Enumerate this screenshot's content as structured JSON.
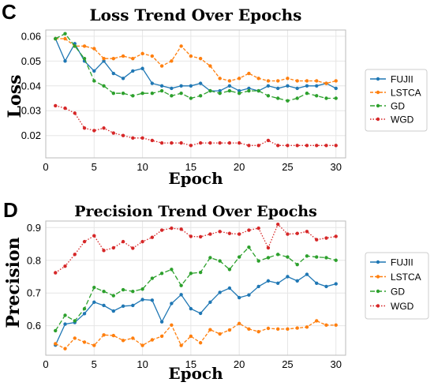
{
  "colors": {
    "FUJII": "#1f77b4",
    "LSTCA": "#ff7f0e",
    "GD": "#2ca02c",
    "WGD": "#d62728",
    "grid": "#e6e6e6",
    "axis": "#333333"
  },
  "chart_data": [
    {
      "panel_label": "C",
      "type": "line",
      "title": "Loss Trend Over Epochs",
      "xlabel": "Epoch",
      "ylabel": "Loss",
      "xlim": [
        0,
        31
      ],
      "ylim": [
        0.011,
        0.0625
      ],
      "xticks": [
        0,
        5,
        10,
        15,
        20,
        25,
        30
      ],
      "yticks": [
        0.02,
        0.03,
        0.04,
        0.05,
        0.06
      ],
      "ytick_labels": [
        "0.02",
        "0.03",
        "0.04",
        "0.05",
        "0.06"
      ],
      "grid": true,
      "legend_position": "right",
      "x": [
        1,
        2,
        3,
        4,
        5,
        6,
        7,
        8,
        9,
        10,
        11,
        12,
        13,
        14,
        15,
        16,
        17,
        18,
        19,
        20,
        21,
        22,
        23,
        24,
        25,
        26,
        27,
        28,
        29,
        30
      ],
      "series": [
        {
          "name": "FUJII",
          "values": [
            0.059,
            0.05,
            0.057,
            0.05,
            0.046,
            0.05,
            0.045,
            0.043,
            0.046,
            0.047,
            0.041,
            0.04,
            0.039,
            0.04,
            0.04,
            0.041,
            0.038,
            0.038,
            0.04,
            0.038,
            0.039,
            0.038,
            0.04,
            0.039,
            0.04,
            0.039,
            0.04,
            0.04,
            0.041,
            0.039
          ]
        },
        {
          "name": "LSTCA",
          "values": [
            0.059,
            0.059,
            0.056,
            0.056,
            0.055,
            0.051,
            0.051,
            0.052,
            0.051,
            0.053,
            0.052,
            0.048,
            0.05,
            0.056,
            0.052,
            0.051,
            0.048,
            0.043,
            0.042,
            0.043,
            0.045,
            0.043,
            0.042,
            0.042,
            0.043,
            0.042,
            0.042,
            0.042,
            0.041,
            0.042
          ]
        },
        {
          "name": "GD",
          "values": [
            0.059,
            0.061,
            0.056,
            0.051,
            0.042,
            0.04,
            0.037,
            0.037,
            0.036,
            0.037,
            0.037,
            0.038,
            0.036,
            0.037,
            0.035,
            0.036,
            0.038,
            0.037,
            0.038,
            0.037,
            0.038,
            0.038,
            0.036,
            0.035,
            0.034,
            0.035,
            0.037,
            0.036,
            0.035,
            0.035
          ]
        },
        {
          "name": "WGD",
          "values": [
            0.032,
            0.031,
            0.029,
            0.023,
            0.022,
            0.023,
            0.021,
            0.02,
            0.019,
            0.019,
            0.018,
            0.017,
            0.017,
            0.017,
            0.016,
            0.017,
            0.017,
            0.017,
            0.017,
            0.017,
            0.016,
            0.016,
            0.018,
            0.016,
            0.016,
            0.016,
            0.016,
            0.016,
            0.016,
            0.016
          ]
        }
      ]
    },
    {
      "panel_label": "D",
      "type": "line",
      "title": "Precision Trend Over Epochs",
      "xlabel": "Epoch",
      "ylabel": "Precision",
      "xlim": [
        0,
        31
      ],
      "ylim": [
        0.51,
        0.92
      ],
      "xticks": [
        0,
        5,
        10,
        15,
        20,
        25,
        30
      ],
      "yticks": [
        0.6,
        0.7,
        0.8,
        0.9
      ],
      "ytick_labels": [
        "0.6",
        "0.7",
        "0.8",
        "0.9"
      ],
      "grid": true,
      "legend_position": "right",
      "x": [
        1,
        2,
        3,
        4,
        5,
        6,
        7,
        8,
        9,
        10,
        11,
        12,
        13,
        14,
        15,
        16,
        17,
        18,
        19,
        20,
        21,
        22,
        23,
        24,
        25,
        26,
        27,
        28,
        29,
        30
      ],
      "series": [
        {
          "name": "FUJII",
          "values": [
            0.541,
            0.605,
            0.61,
            0.637,
            0.672,
            0.662,
            0.645,
            0.66,
            0.662,
            0.68,
            0.678,
            0.612,
            0.668,
            0.695,
            0.652,
            0.638,
            0.672,
            0.702,
            0.715,
            0.686,
            0.694,
            0.72,
            0.737,
            0.73,
            0.75,
            0.737,
            0.757,
            0.73,
            0.72,
            0.728
          ]
        },
        {
          "name": "LSTCA",
          "values": [
            0.545,
            0.53,
            0.562,
            0.55,
            0.54,
            0.572,
            0.57,
            0.555,
            0.562,
            0.54,
            0.557,
            0.568,
            0.602,
            0.54,
            0.568,
            0.548,
            0.588,
            0.575,
            0.587,
            0.607,
            0.59,
            0.582,
            0.592,
            0.59,
            0.59,
            0.593,
            0.596,
            0.615,
            0.602,
            0.602
          ]
        },
        {
          "name": "GD",
          "values": [
            0.585,
            0.632,
            0.615,
            0.652,
            0.717,
            0.705,
            0.692,
            0.71,
            0.705,
            0.712,
            0.745,
            0.76,
            0.772,
            0.723,
            0.76,
            0.763,
            0.808,
            0.798,
            0.772,
            0.81,
            0.84,
            0.798,
            0.808,
            0.818,
            0.81,
            0.787,
            0.813,
            0.81,
            0.808,
            0.8
          ]
        },
        {
          "name": "WGD",
          "values": [
            0.762,
            0.782,
            0.818,
            0.857,
            0.875,
            0.83,
            0.838,
            0.857,
            0.837,
            0.857,
            0.87,
            0.892,
            0.898,
            0.895,
            0.873,
            0.872,
            0.88,
            0.888,
            0.882,
            0.88,
            0.892,
            0.898,
            0.838,
            0.91,
            0.88,
            0.882,
            0.888,
            0.863,
            0.868,
            0.873
          ]
        }
      ]
    }
  ]
}
